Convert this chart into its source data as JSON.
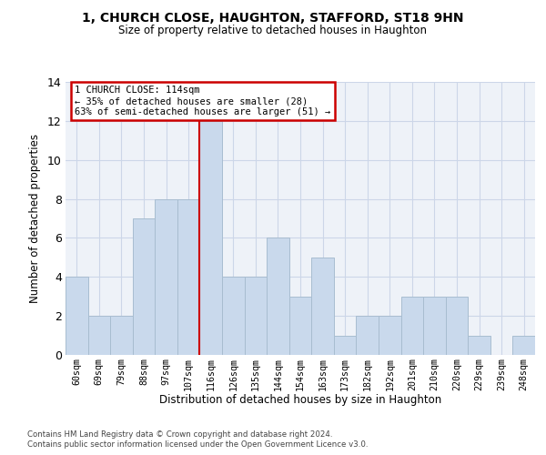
{
  "title1": "1, CHURCH CLOSE, HAUGHTON, STAFFORD, ST18 9HN",
  "title2": "Size of property relative to detached houses in Haughton",
  "xlabel": "Distribution of detached houses by size in Haughton",
  "ylabel": "Number of detached properties",
  "categories": [
    "60sqm",
    "69sqm",
    "79sqm",
    "88sqm",
    "97sqm",
    "107sqm",
    "116sqm",
    "126sqm",
    "135sqm",
    "144sqm",
    "154sqm",
    "163sqm",
    "173sqm",
    "182sqm",
    "192sqm",
    "201sqm",
    "210sqm",
    "220sqm",
    "229sqm",
    "239sqm",
    "248sqm"
  ],
  "values": [
    4,
    2,
    2,
    7,
    8,
    8,
    12,
    4,
    4,
    6,
    3,
    5,
    1,
    2,
    2,
    3,
    3,
    3,
    1,
    0,
    1
  ],
  "bar_color": "#c9d9ec",
  "bar_edge_color": "#a8bdd0",
  "vline_position": 5.5,
  "vline_color": "#cc0000",
  "annotation_line1": "1 CHURCH CLOSE: 114sqm",
  "annotation_line2": "← 35% of detached houses are smaller (28)",
  "annotation_line3": "63% of semi-detached houses are larger (51) →",
  "annotation_box_edgecolor": "#cc0000",
  "ylim_max": 14,
  "yticks": [
    0,
    2,
    4,
    6,
    8,
    10,
    12,
    14
  ],
  "grid_color": "#ccd6e8",
  "bg_color": "#eef2f8",
  "footnote1": "Contains HM Land Registry data © Crown copyright and database right 2024.",
  "footnote2": "Contains public sector information licensed under the Open Government Licence v3.0."
}
